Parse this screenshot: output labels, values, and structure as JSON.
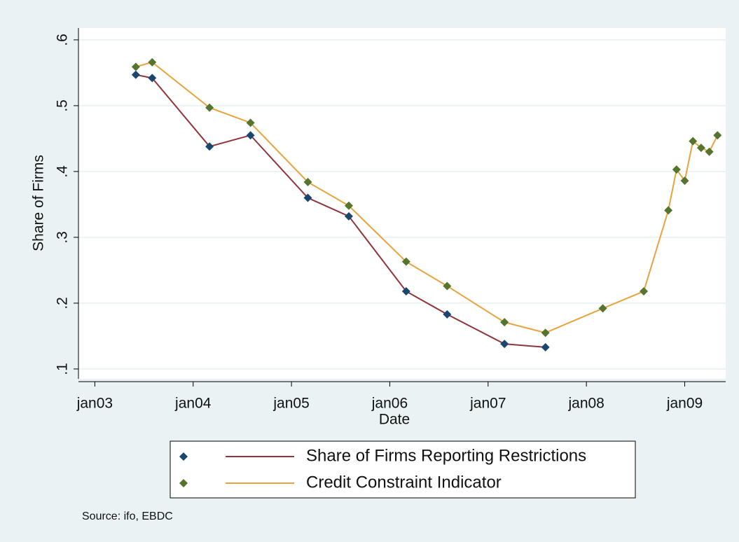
{
  "chart_data": {
    "type": "line",
    "y_label": "Share of Firms",
    "x_label": "Date",
    "source": "Source: ifo, EBDC",
    "x": [
      "2003-06",
      "2003-08",
      "2004-03",
      "2004-08",
      "2005-03",
      "2005-08",
      "2006-03",
      "2006-08",
      "2007-03",
      "2007-08",
      "2008-03",
      "2008-08",
      "2008-11",
      "2008-12",
      "2009-01",
      "2009-02",
      "2009-03",
      "2009-04",
      "2009-05"
    ],
    "series": [
      {
        "name": "Share of Firms Reporting Restrictions",
        "color": "#90353b",
        "marker_color": "#1a476f",
        "values": [
          0.547,
          0.542,
          0.438,
          0.455,
          0.36,
          0.332,
          0.218,
          0.183,
          0.138,
          0.133,
          null,
          null,
          null,
          null,
          null,
          null,
          null,
          null,
          null
        ]
      },
      {
        "name": "Credit Constraint Indicator",
        "color": "#e8a33d",
        "marker_color": "#55752f",
        "values": [
          0.559,
          0.566,
          0.497,
          0.474,
          0.384,
          0.348,
          0.263,
          0.226,
          0.171,
          0.155,
          0.192,
          0.218,
          0.341,
          0.403,
          0.386,
          0.446,
          0.436,
          0.43,
          0.455
        ]
      }
    ],
    "xlim": [
      "2002-11",
      "2009-06"
    ],
    "xticks": [
      {
        "value": "2003-01",
        "label": "jan03"
      },
      {
        "value": "2004-01",
        "label": "jan04"
      },
      {
        "value": "2005-01",
        "label": "jan05"
      },
      {
        "value": "2006-01",
        "label": "jan06"
      },
      {
        "value": "2007-01",
        "label": "jan07"
      },
      {
        "value": "2008-01",
        "label": "jan08"
      },
      {
        "value": "2009-01",
        "label": "jan09"
      }
    ],
    "ylim": [
      0.085,
      0.618
    ],
    "yticks": [
      {
        "value": 0.1,
        "label": ".1"
      },
      {
        "value": 0.2,
        "label": ".2"
      },
      {
        "value": 0.3,
        "label": ".3"
      },
      {
        "value": 0.4,
        "label": ".4"
      },
      {
        "value": 0.5,
        "label": ".5"
      },
      {
        "value": 0.6,
        "label": ".6"
      }
    ],
    "grid": true,
    "legend": "bottom"
  }
}
